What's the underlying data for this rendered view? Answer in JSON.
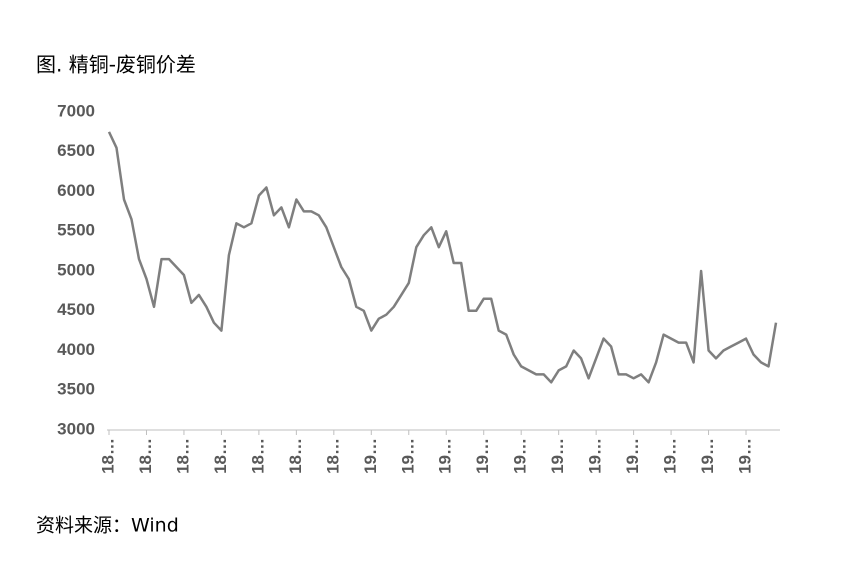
{
  "chart_data": {
    "type": "line",
    "title": "图. 精铜-废铜价差",
    "source": "资料来源：Wind",
    "categories": [
      "18…",
      null,
      null,
      null,
      null,
      "18…",
      null,
      null,
      null,
      null,
      "18…",
      null,
      null,
      null,
      null,
      "18…",
      null,
      null,
      null,
      null,
      "18…",
      null,
      null,
      null,
      null,
      "18…",
      null,
      null,
      null,
      null,
      "18…",
      null,
      null,
      null,
      null,
      "19…",
      null,
      null,
      null,
      null,
      "19…",
      null,
      null,
      null,
      null,
      "19…",
      null,
      null,
      null,
      null,
      "19…",
      null,
      null,
      null,
      null,
      "19…",
      null,
      null,
      null,
      null,
      "19…",
      null,
      null,
      null,
      null,
      "19…",
      null,
      null,
      null,
      null,
      "19…",
      null,
      null,
      null,
      null,
      "19…",
      null,
      null,
      null,
      null,
      "19…",
      null,
      null,
      null,
      null,
      "19…",
      null,
      null,
      null,
      null
    ],
    "series": [
      {
        "color": "#7f7f7f",
        "values": [
          6750,
          6550,
          5900,
          5650,
          5150,
          4900,
          4550,
          5150,
          5150,
          5050,
          4950,
          4600,
          4700,
          4550,
          4350,
          4250,
          5200,
          5600,
          5550,
          5600,
          5950,
          6050,
          5700,
          5800,
          5550,
          5900,
          5750,
          5750,
          5700,
          5550,
          5300,
          5050,
          4900,
          4550,
          4500,
          4250,
          4400,
          4450,
          4550,
          4700,
          4850,
          5300,
          5450,
          5550,
          5300,
          5500,
          5100,
          5100,
          4500,
          4500,
          4650,
          4650,
          4250,
          4200,
          3950,
          3800,
          3750,
          3700,
          3700,
          3600,
          3750,
          3800,
          4000,
          3900,
          3650,
          3900,
          4150,
          4050,
          3700,
          3700,
          3650,
          3700,
          3600,
          3850,
          4200,
          4150,
          4100,
          4100,
          3850,
          5000,
          4000,
          3900,
          4000,
          4050,
          4100,
          4150,
          3950,
          3850,
          3800,
          4350
        ]
      }
    ],
    "ylim": [
      3000,
      7000
    ],
    "yticks": [
      3000,
      3500,
      4000,
      4500,
      5000,
      5500,
      6000,
      6500,
      7000
    ],
    "grid": false
  }
}
